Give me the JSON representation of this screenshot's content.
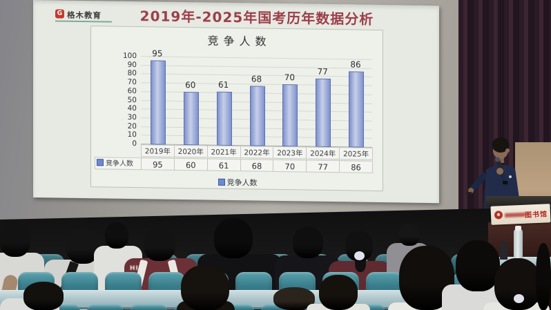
{
  "slide": {
    "logo_text": "格木教育",
    "logo_mark": "G",
    "title": "2019年-2025年国考历年数据分析",
    "colors": {
      "title_red": "#9c4049",
      "logo_red": "#c23a2e",
      "logo_underline_green": "#7dab97"
    }
  },
  "chart_data": {
    "type": "bar",
    "title": "竞争人数",
    "categories": [
      "2019年",
      "2020年",
      "2021年",
      "2022年",
      "2023年",
      "2024年",
      "2025年"
    ],
    "series": [
      {
        "name": "竞争人数",
        "values": [
          95,
          60,
          61,
          68,
          70,
          77,
          86
        ]
      }
    ],
    "xlabel": "",
    "ylabel": "",
    "ylim": [
      0,
      100
    ],
    "ytick_step": 10,
    "grid": true,
    "legend_label": "竞争人数",
    "legend_position": "bottom",
    "data_table_shown": true,
    "bar_colors": {
      "edge": "#7e91ca",
      "center": "#c6cfe9",
      "border": "#5c6fb4",
      "legend_fill": "#6c89d4"
    }
  },
  "scene": {
    "podium_banner_text": "图书馆",
    "audience_jacket_text": "HIG"
  }
}
